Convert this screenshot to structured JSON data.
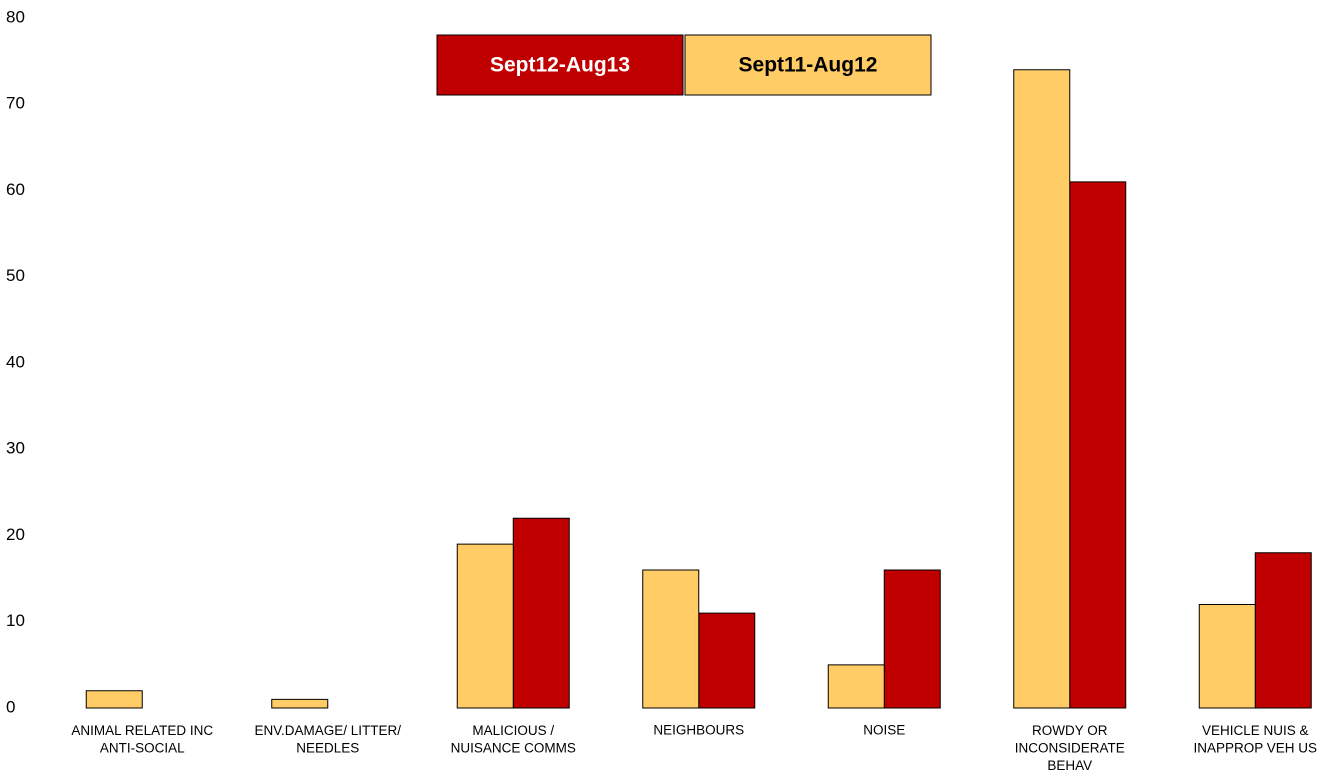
{
  "chart_data": {
    "type": "bar",
    "categories": [
      "ANIMAL RELATED INC\nANTI-SOCIAL",
      "ENV.DAMAGE/ LITTER/\nNEEDLES",
      "MALICIOUS /\nNUISANCE COMMS",
      "NEIGHBOURS",
      "NOISE",
      "ROWDY OR\nINCONSIDERATE\nBEHAV",
      "VEHICLE NUIS &\nINAPPROP VEH US"
    ],
    "series": [
      {
        "name": "Sept12-Aug13",
        "color": "#c00000",
        "values": [
          null,
          null,
          22,
          11,
          16,
          61,
          18
        ]
      },
      {
        "name": "Sept11-Aug12",
        "color": "#ffcc66",
        "values": [
          2,
          1,
          19,
          16,
          5,
          74,
          12
        ]
      }
    ],
    "ylim": [
      0,
      80
    ],
    "yticks": [
      0,
      10,
      20,
      30,
      40,
      50,
      60,
      70,
      80
    ],
    "grid": false,
    "legend": "top"
  }
}
